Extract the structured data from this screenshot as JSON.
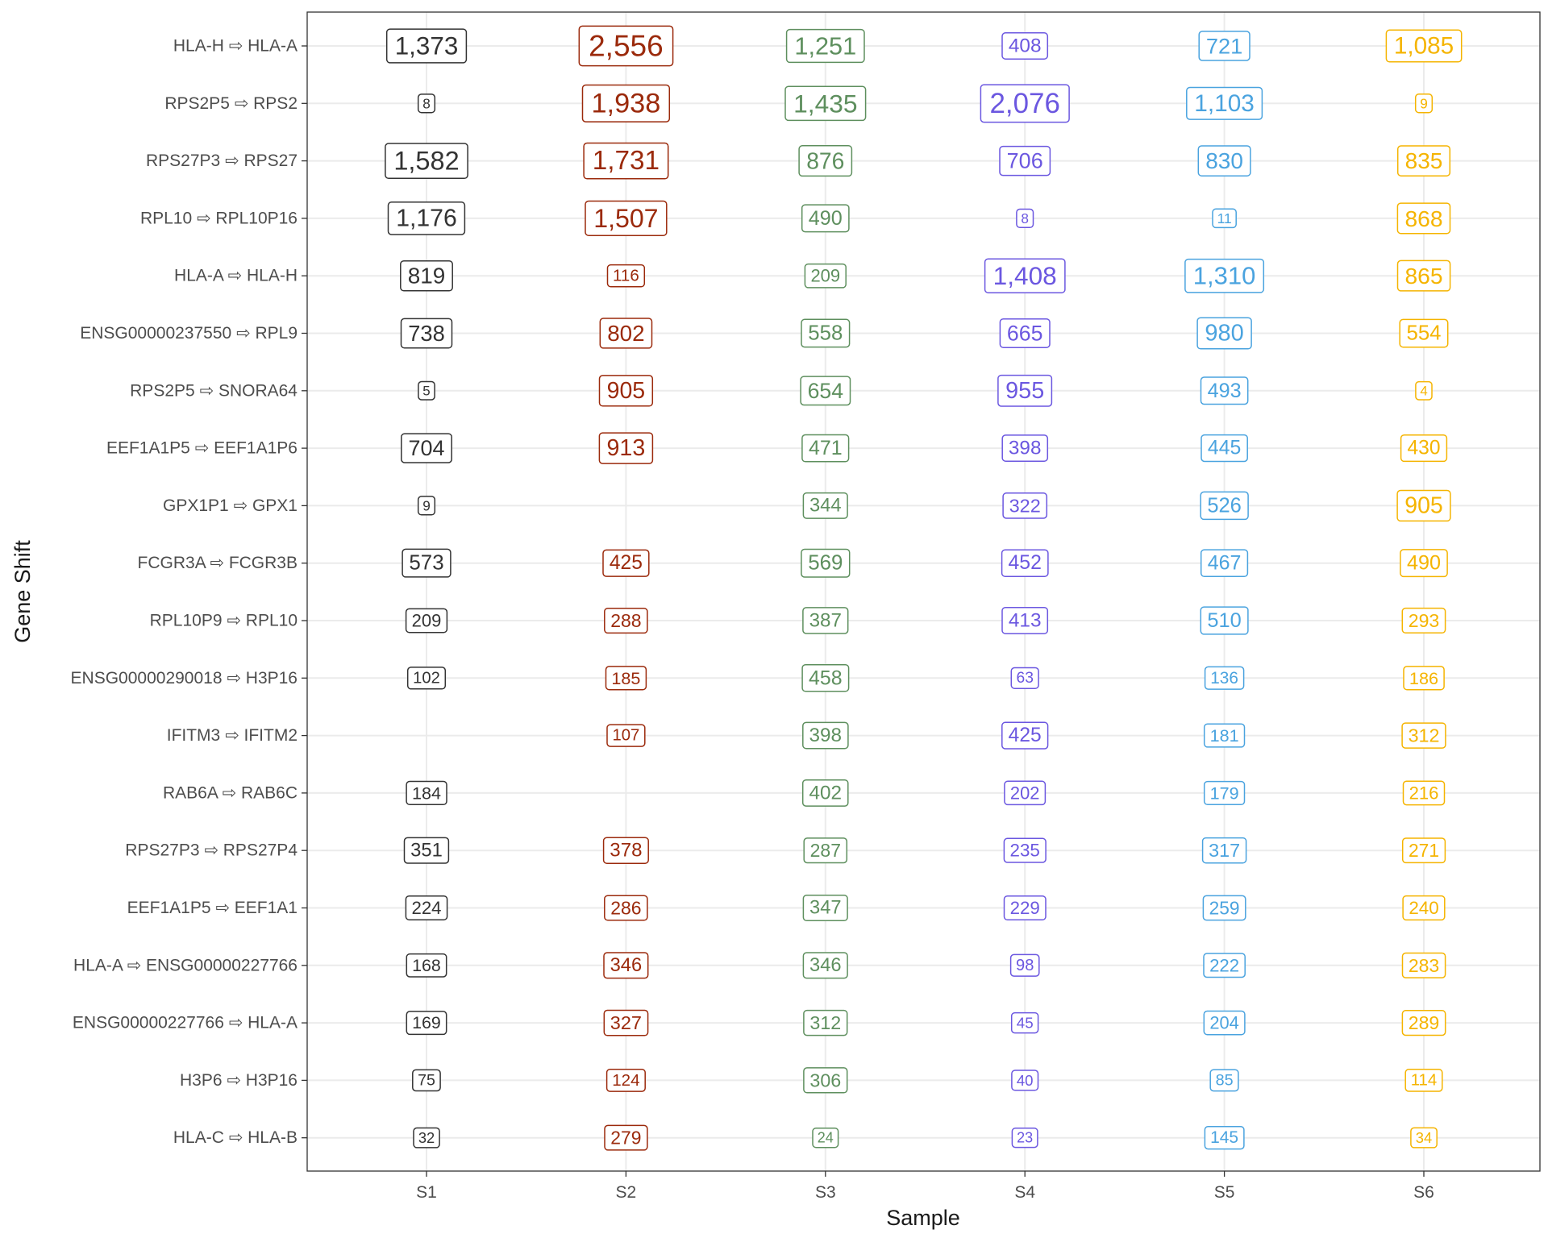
{
  "chart_data": {
    "type": "table",
    "title": "",
    "xlabel": "Sample",
    "ylabel": "Gene Shift",
    "samples": [
      "S1",
      "S2",
      "S3",
      "S4",
      "S5",
      "S6"
    ],
    "sample_colors": [
      "#333333",
      "#9b2a0c",
      "#5e8f5e",
      "#6b57e0",
      "#4aa3df",
      "#f5b400"
    ],
    "rows": [
      {
        "label": "HLA-H ⇨ HLA-A",
        "values": [
          1373,
          2556,
          1251,
          408,
          721,
          1085
        ]
      },
      {
        "label": "RPS2P5 ⇨ RPS2",
        "values": [
          8,
          1938,
          1435,
          2076,
          1103,
          9
        ]
      },
      {
        "label": "RPS27P3 ⇨ RPS27",
        "values": [
          1582,
          1731,
          876,
          706,
          830,
          835
        ]
      },
      {
        "label": "RPL10 ⇨ RPL10P16",
        "values": [
          1176,
          1507,
          490,
          8,
          11,
          868
        ]
      },
      {
        "label": "HLA-A ⇨ HLA-H",
        "values": [
          819,
          116,
          209,
          1408,
          1310,
          865
        ]
      },
      {
        "label": "ENSG00000237550 ⇨ RPL9",
        "values": [
          738,
          802,
          558,
          665,
          980,
          554
        ]
      },
      {
        "label": "RPS2P5 ⇨ SNORA64",
        "values": [
          5,
          905,
          654,
          955,
          493,
          4
        ]
      },
      {
        "label": "EEF1A1P5 ⇨ EEF1A1P6",
        "values": [
          704,
          913,
          471,
          398,
          445,
          430
        ]
      },
      {
        "label": "GPX1P1 ⇨ GPX1",
        "values": [
          9,
          null,
          344,
          322,
          526,
          905
        ]
      },
      {
        "label": "FCGR3A ⇨ FCGR3B",
        "values": [
          573,
          425,
          569,
          452,
          467,
          490
        ]
      },
      {
        "label": "RPL10P9 ⇨ RPL10",
        "values": [
          209,
          288,
          387,
          413,
          510,
          293
        ]
      },
      {
        "label": "ENSG00000290018 ⇨ H3P16",
        "values": [
          102,
          185,
          458,
          63,
          136,
          186
        ]
      },
      {
        "label": "IFITM3 ⇨ IFITM2",
        "values": [
          null,
          107,
          398,
          425,
          181,
          312
        ]
      },
      {
        "label": "RAB6A ⇨ RAB6C",
        "values": [
          184,
          null,
          402,
          202,
          179,
          216
        ]
      },
      {
        "label": "RPS27P3 ⇨ RPS27P4",
        "values": [
          351,
          378,
          287,
          235,
          317,
          271
        ]
      },
      {
        "label": "EEF1A1P5 ⇨ EEF1A1",
        "values": [
          224,
          286,
          347,
          229,
          259,
          240
        ]
      },
      {
        "label": "HLA-A ⇨ ENSG00000227766",
        "values": [
          168,
          346,
          346,
          98,
          222,
          283
        ]
      },
      {
        "label": "ENSG00000227766 ⇨ HLA-A",
        "values": [
          169,
          327,
          312,
          45,
          204,
          289
        ]
      },
      {
        "label": "H3P6 ⇨ H3P16",
        "values": [
          75,
          124,
          306,
          40,
          85,
          114
        ]
      },
      {
        "label": "HLA-C ⇨ HLA-B",
        "values": [
          32,
          279,
          24,
          23,
          145,
          34
        ]
      }
    ],
    "grid": true,
    "legend": "none"
  }
}
